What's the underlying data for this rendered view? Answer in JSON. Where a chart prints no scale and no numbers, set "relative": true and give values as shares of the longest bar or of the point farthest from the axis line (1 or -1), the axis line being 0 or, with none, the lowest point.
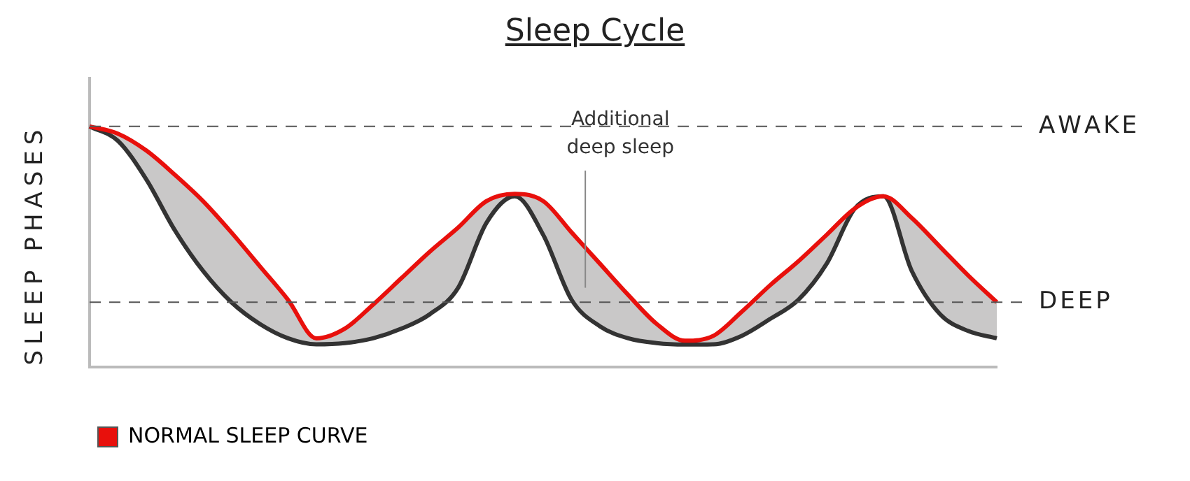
{
  "chart_data": {
    "type": "line",
    "title": "Sleep Cycle",
    "ylabel": "SLEEP PHASES",
    "relative": true,
    "categories": [
      null,
      null,
      null,
      null,
      null,
      null,
      null,
      null,
      null,
      null,
      null,
      null,
      null,
      null,
      null,
      null,
      null,
      null,
      null,
      null,
      null,
      null,
      null,
      null,
      null,
      null,
      null,
      null,
      null,
      null,
      null,
      null,
      null
    ],
    "series": [
      {
        "color": "#333333",
        "values": [
          1.0,
          0.94,
          0.78,
          0.57,
          0.4,
          0.27,
          0.18,
          0.12,
          0.095,
          0.1,
          0.12,
          0.16,
          0.22,
          0.33,
          0.6,
          0.71,
          0.55,
          0.28,
          0.17,
          0.12,
          0.1,
          0.094,
          0.095,
          0.13,
          0.2,
          0.28,
          0.43,
          0.66,
          0.71,
          0.4,
          0.22,
          0.15,
          0.12
        ]
      },
      {
        "name": "NORMAL SLEEP CURVE",
        "color": "#e8100c",
        "values": [
          1.0,
          0.97,
          0.9,
          0.8,
          0.69,
          0.56,
          0.42,
          0.28,
          0.12,
          0.16,
          0.26,
          0.37,
          0.48,
          0.58,
          0.69,
          0.72,
          0.69,
          0.56,
          0.43,
          0.3,
          0.18,
          0.11,
          0.13,
          0.23,
          0.34,
          0.44,
          0.55,
          0.66,
          0.71,
          0.62,
          0.5,
          0.38,
          0.27
        ]
      }
    ],
    "ref_lines": [
      {
        "axis": "y",
        "value": 1,
        "label": "AWAKE",
        "color": "#555555",
        "line_style": "dashed"
      },
      {
        "axis": "y",
        "value": 0.27,
        "label": "DEEP",
        "color": "#555555",
        "line_style": "dashed"
      }
    ],
    "annotations": [
      "Additional\ndeep sleep"
    ],
    "legend": "bottom",
    "grid": false,
    "marker": "none",
    "line_style": "solid"
  }
}
